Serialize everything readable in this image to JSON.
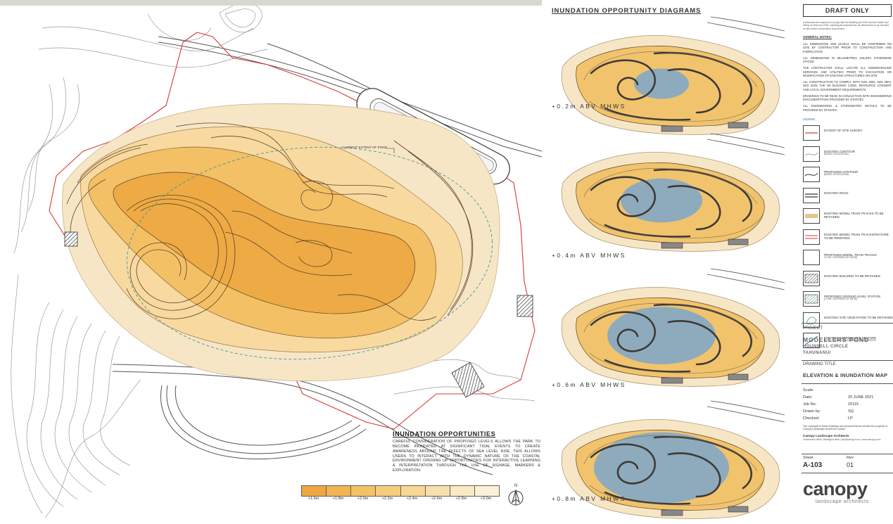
{
  "main_plan": {
    "pond_note": "CURRENT EXTENT OF POND",
    "text_title": "INUNDATION OPPORTUNITIES",
    "text_body": "CAREFUL CONSIDERATION OF PROPOSED LEVELS ALLOWS THE PARK TO BECOME INUNDATED AT SIGNIFICANT TIDAL EVENTS TO CREATE AWARENESS AROUND THE EFFECTS OF SEA LEVEL RISE. THIS ALLOWS USERS TO INTERACT WITH THE DYNAMIC NATURE OF THE COASTAL ENVIRONMENT OPENING UP OPPORTUNITIES FOR INTERACTIVE LEARNING & INTERPRETATION THROUGH THE USE OF SIGNAGE, MARKERS & EXPLORATION.",
    "scale_labels": [
      "+1.6m",
      "+1.8m",
      "+2.0m",
      "+2.2m",
      "+2.4m",
      "+2.6m",
      "+2.8m",
      "+3.0m"
    ],
    "scale_colors": [
      "#eda843",
      "#f0b554",
      "#f3c266",
      "#f5cd7d",
      "#f6d796",
      "#f7e0ae",
      "#f9e9c6",
      "#fbf1da"
    ],
    "north_label": "N"
  },
  "diagrams": {
    "title": "INUNDATION OPPORTUNITY DIAGRAMS",
    "items": [
      {
        "label": "+0.2m ABV MHWS",
        "water_level": 0.2
      },
      {
        "label": "+0.4m ABV MHWS",
        "water_level": 0.4
      },
      {
        "label": "+0.6m ABV MHWS",
        "water_level": 0.6
      },
      {
        "label": "+0.8m ABV MHWS",
        "water_level": 0.8
      }
    ],
    "colors": {
      "land": "#f1c36d",
      "water": "#88aac2"
    }
  },
  "sidebar": {
    "draft": "DRAFT ONLY",
    "intro": "Contractors are required to comply with the Building Act 2004 and the Health and Safety at Work Act 2015, including all amendments. All dimensions to be checked on site before construction commences.",
    "general_notes_title": "GENERAL NOTES:",
    "notes": [
      "ALL DIMENSIONS AND LEVELS SHALL BE CONFIRMED ON SITE BY CONTRACTOR PRIOR TO CONSTRUCTION AND FABRICATION",
      "ALL DIMENSIONS IN MILLIMETRES UNLESS OTHERWISE STATED",
      "THE CONTRACTOR SHALL LOCATE ALL UNDERGROUND SERVICES AND UTILITIES PRIOR TO EXCAVATION OR MODIFICATION OF EXISTING STRUCTURES ON SITE",
      "ALL CONSTRUCTION TO COMPLY WITH NZS 3604, NZS 3604, NZS 4229, THE NZ BUILDING CODE, RESOURCE CONSENT AND LOCAL GOVERNMENT REQUIREMENTS",
      "DRAWINGS TO BE READ IN CONJUCTION WITH ENGINEERING DOCUMENTATION PROVIDED BY STANTEC",
      "ALL ENGINEERING & STORMWATER DETAILS TO BE PROVIDED BY STANTEC"
    ],
    "legend_title": "LEGEND",
    "legend": [
      {
        "label": "EXTENT OF SITE SURVEY",
        "sub": ""
      },
      {
        "label": "EXISTING CONTOUR",
        "sub": "(BASED ON NZVD2016)"
      },
      {
        "label": "PROPOSED CONTOUR",
        "sub": "(BASED ON NZVD2016)"
      },
      {
        "label": "EXISTING ROAD",
        "sub": ""
      },
      {
        "label": "EXISTING MODEL TRAIN TRACKS TO BE RETAINED",
        "sub": ""
      },
      {
        "label": "EXISTING MODEL TRAIN TRACKS/FEATURE TO BE REMOVED",
        "sub": ""
      },
      {
        "label": "PROPOSED MODEL TRAIN TRACKS",
        "sub": "(TO BE CONFIRMED BY NSOM)"
      },
      {
        "label": "EXISTING BUILDING TO BE RETAINED",
        "sub": ""
      },
      {
        "label": "PROPOSED GROUND LEVEL STATION",
        "sub": "(TO BE CONFIRMED BY NSOM)"
      },
      {
        "label": "EXISTING SITE VEGETATION TO BE RETAINED",
        "sub": ""
      },
      {
        "label": "EXISTING STORMWATER FEATURE",
        "sub": "REFER STANTEC DOCUMENTATION FOR DETAIL"
      }
    ],
    "project_label": "PROJECT",
    "project_name": "MODELLERS POND",
    "project_line2": "HOUNSELL CIRCLE",
    "project_line3": "TAHUNANUI",
    "drawing_title_label": "DRAWING TITLE",
    "drawing_title": "ELEVATION & INUNDATION MAP",
    "meta": [
      {
        "k": "Scale:",
        "v": ""
      },
      {
        "k": "Date:",
        "v": "25 JUNE 2021"
      },
      {
        "k": "Job No:",
        "v": "20115"
      },
      {
        "k": "Drawn by:",
        "v": "SQ"
      },
      {
        "k": "Checked:",
        "v": "LP"
      }
    ],
    "copyright": "The copyright to these drawings and all parts thereof remain the property of Canopy Landscape Architects Limited",
    "firm": "Canopy Landscape Architects",
    "addr": "Christchurch office | Wellington office | info@canopy.co.nz | www.canopy.co.nz",
    "sheet_label": "Sheet",
    "rev_label": "Rev",
    "sheet": "A-103",
    "rev": "01",
    "logo": "canopy",
    "logo_sub": "landscape architects"
  }
}
